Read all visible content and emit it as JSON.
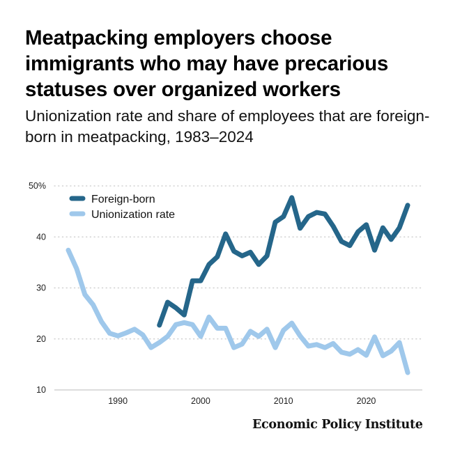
{
  "title": "Meatpacking employers choose immigrants who may have precarious statuses over organized workers",
  "subtitle": "Unionization rate and share of employees that are foreign-born in meatpacking, 1983–2024",
  "footer": "Economic Policy Institute",
  "chart_data": {
    "type": "line",
    "title": "Meatpacking employers choose immigrants who may have precarious statuses over organized workers",
    "subtitle": "Unionization rate and share of employees that are foreign-born in meatpacking, 1983–2024",
    "xlabel": "",
    "ylabel": "",
    "xlim": [
      1983,
      2024
    ],
    "ylim": [
      10,
      50
    ],
    "x_ticks": [
      1990,
      2000,
      2010,
      2020
    ],
    "x_tick_labels": [
      "1990",
      "2000",
      "2010",
      "2020"
    ],
    "y_ticks": [
      10,
      20,
      30,
      40,
      50
    ],
    "y_tick_labels": [
      "10",
      "20",
      "30",
      "40",
      "50%"
    ],
    "grid": "horizontal dotted",
    "legend_position": "top-left",
    "series": [
      {
        "name": "Foreign-born",
        "color": "#25668a",
        "x": [
          1994,
          1995,
          1996,
          1997,
          1998,
          1999,
          2000,
          2001,
          2002,
          2003,
          2004,
          2005,
          2006,
          2007,
          2008,
          2009,
          2010,
          2011,
          2012,
          2013,
          2014,
          2015,
          2016,
          2017,
          2018,
          2019,
          2020,
          2021,
          2022,
          2023,
          2024
        ],
        "values": [
          22.7,
          27.2,
          26.1,
          24.7,
          31.4,
          31.4,
          34.6,
          36.1,
          40.6,
          37.2,
          36.3,
          37.0,
          34.6,
          36.3,
          42.9,
          44.0,
          47.7,
          41.7,
          44.0,
          44.8,
          44.5,
          42.1,
          39.1,
          38.3,
          41.0,
          42.4,
          37.4,
          41.8,
          39.5,
          41.8,
          46.2
        ]
      },
      {
        "name": "Unionization rate",
        "color": "#9fc8eb",
        "x": [
          1983,
          1984,
          1985,
          1986,
          1987,
          1988,
          1989,
          1990,
          1991,
          1992,
          1993,
          1994,
          1995,
          1996,
          1997,
          1998,
          1999,
          2000,
          2001,
          2002,
          2003,
          2004,
          2005,
          2006,
          2007,
          2008,
          2009,
          2010,
          2011,
          2012,
          2013,
          2014,
          2015,
          2016,
          2017,
          2018,
          2019,
          2020,
          2021,
          2022,
          2023,
          2024
        ],
        "values": [
          37.4,
          33.8,
          28.7,
          26.7,
          23.4,
          21.1,
          20.6,
          21.2,
          21.9,
          20.8,
          18.3,
          19.3,
          20.5,
          22.8,
          23.2,
          22.8,
          20.5,
          24.3,
          22.1,
          22.1,
          18.3,
          19.0,
          21.5,
          20.5,
          21.9,
          18.3,
          21.7,
          23.1,
          20.6,
          18.6,
          18.9,
          18.3,
          19.1,
          17.4,
          17.0,
          17.9,
          16.8,
          20.4,
          16.7,
          17.6,
          19.3,
          13.4
        ]
      }
    ]
  }
}
